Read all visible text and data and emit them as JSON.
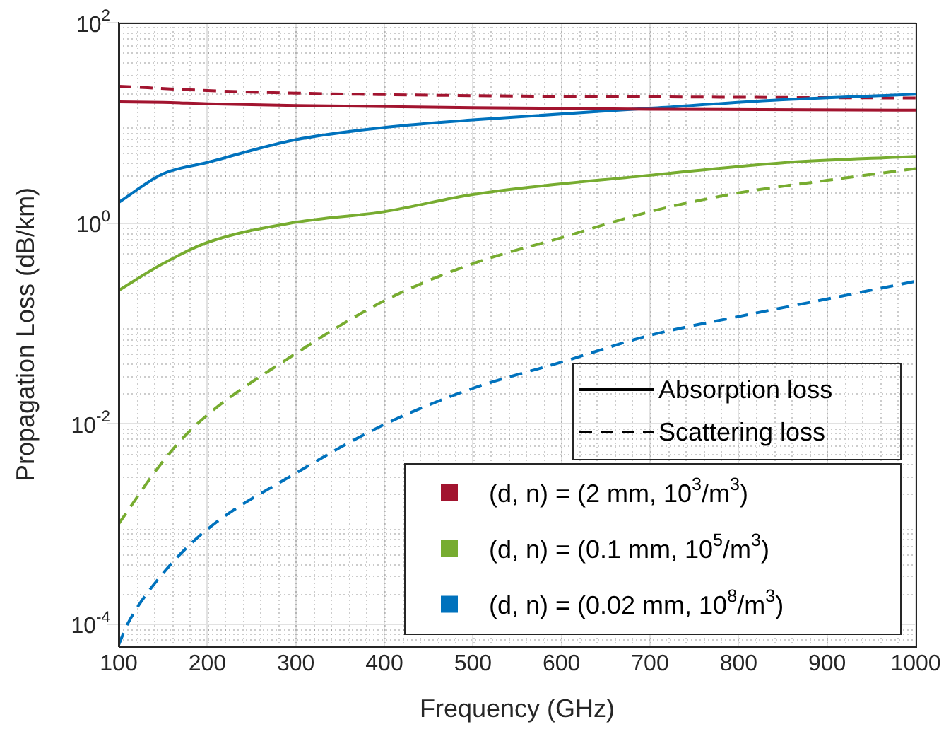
{
  "chart_data": {
    "type": "line",
    "xlabel": "Frequency (GHz)",
    "ylabel": "Propagation Loss (dB/km)",
    "xlim": [
      100,
      1000
    ],
    "xticks": [
      100,
      200,
      300,
      400,
      500,
      600,
      700,
      800,
      900,
      1000
    ],
    "ylim": [
      6e-05,
      100
    ],
    "yticks": [
      {
        "value": 0.0001,
        "label": "10$^{-4}$"
      },
      {
        "value": 0.01,
        "label": "10$^{-2}$"
      },
      {
        "value": 1,
        "label": "10$^{0}$"
      },
      {
        "value": 100,
        "label": "10$^{2}$"
      }
    ],
    "log": "y",
    "grid": true,
    "legend": "bottom right",
    "marker": "none",
    "annotations": [
      "Absorption loss",
      "Scattering loss"
    ],
    "series": [
      {
        "name": "(d, n) = (2 mm, 10$^{3}$/m$^{3}$)",
        "color": "#a2142f",
        "line_style": "solid",
        "x": [
          100,
          150,
          200,
          300,
          500,
          700,
          1000
        ],
        "values": [
          16.2,
          16.0,
          15.5,
          14.9,
          14.2,
          13.7,
          13.4
        ]
      },
      {
        "name": "(d, n) = (0.1 mm, 10$^{5}$/m$^{3}$)",
        "color": "#77ac30",
        "line_style": "solid",
        "x": [
          100,
          150,
          200,
          300,
          400,
          500,
          700,
          850,
          1000
        ],
        "values": [
          0.213,
          0.394,
          0.64,
          1.02,
          1.3,
          1.93,
          3.0,
          4.0,
          4.63
        ]
      },
      {
        "name": "(d, n) = (0.02 mm, 10$^{8}$/m$^{3}$)",
        "color": "#0072bd",
        "line_style": "solid",
        "x": [
          100,
          150,
          200,
          300,
          400,
          500,
          700,
          850,
          1000
        ],
        "values": [
          1.61,
          3.1,
          4.03,
          6.8,
          9.0,
          10.7,
          14.0,
          17.0,
          19.3
        ]
      },
      {
        "color": "#a2142f",
        "line_style": "dashed",
        "x": [
          100,
          200,
          300,
          500,
          700,
          1000
        ],
        "values": [
          23.2,
          21,
          19.8,
          18.7,
          18.2,
          17.7
        ]
      },
      {
        "color": "#77ac30",
        "line_style": "dashed",
        "x": [
          100,
          150,
          189,
          300,
          400,
          500,
          600,
          700,
          800,
          900,
          1000
        ],
        "values": [
          0.001,
          0.0042,
          0.01,
          0.05,
          0.168,
          0.394,
          0.716,
          1.3,
          2.0,
          2.67,
          3.5
        ]
      },
      {
        "color": "#0072bd",
        "line_style": "dashed",
        "x": [
          100,
          110,
          150,
          200,
          300,
          400,
          500,
          600,
          700,
          800,
          900,
          1000
        ],
        "values": [
          6.2e-05,
          0.0001,
          0.00032,
          0.00088,
          0.0032,
          0.0098,
          0.0225,
          0.041,
          0.076,
          0.117,
          0.175,
          0.263
        ]
      }
    ]
  }
}
